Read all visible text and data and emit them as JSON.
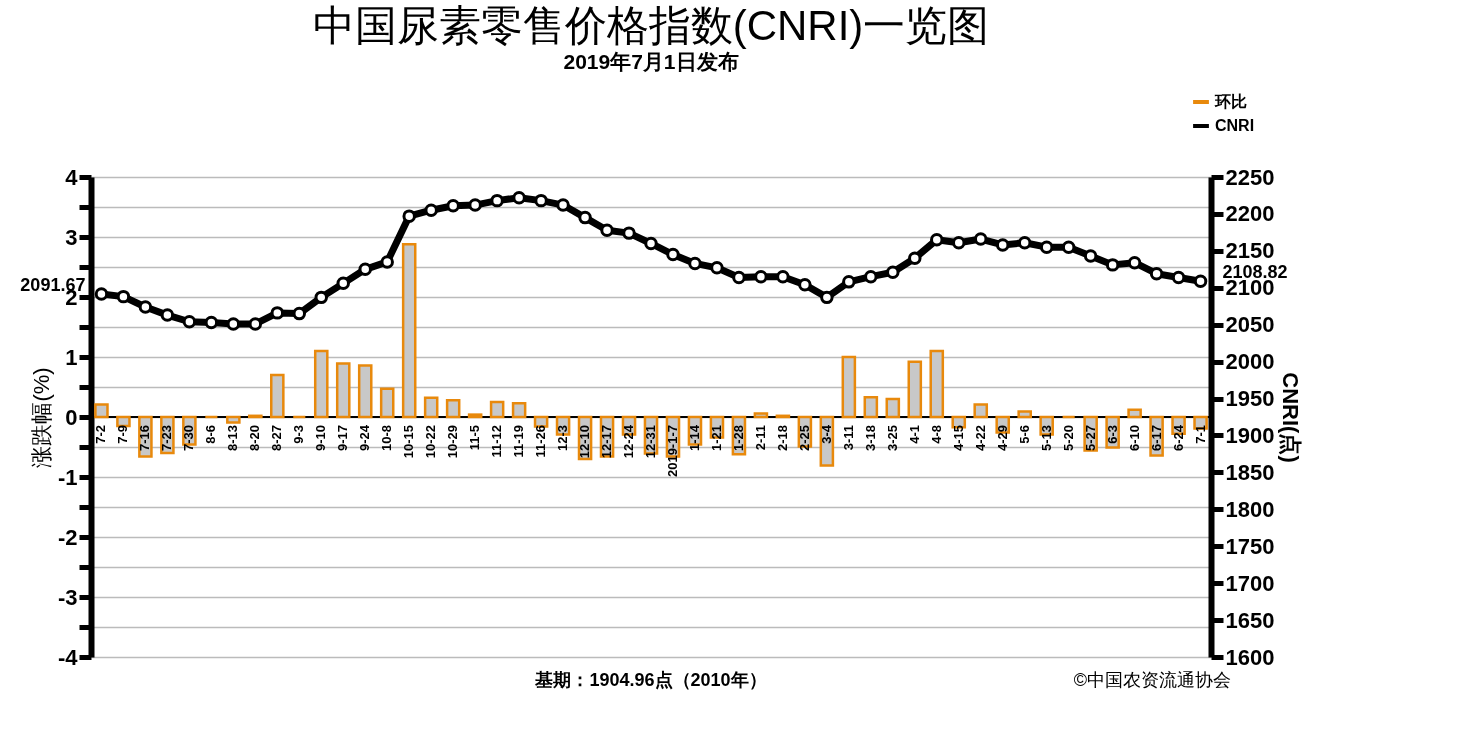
{
  "chart_data": {
    "type": "bar",
    "title": "中国尿素零售价格指数(CNRI)一览图",
    "subtitle": "2019年7月1日发布",
    "ylabel": "涨跌幅(%)",
    "y2label": "CNRI(点)",
    "categories": [
      "7-2",
      "7-9",
      "7-16",
      "7-23",
      "7-30",
      "8-6",
      "8-13",
      "8-20",
      "8-27",
      "9-3",
      "9-10",
      "9-17",
      "9-24",
      "10-8",
      "10-15",
      "10-22",
      "10-29",
      "11-5",
      "11-12",
      "11-19",
      "11-26",
      "12-3",
      "12-10",
      "12-17",
      "12-24",
      "12-31",
      "2019-1-7",
      "1-14",
      "1-21",
      "1-28",
      "2-11",
      "2-18",
      "2-25",
      "3-4",
      "3-11",
      "3-18",
      "3-25",
      "4-1",
      "4-8",
      "4-15",
      "4-22",
      "4-29",
      "5-6",
      "5-13",
      "5-20",
      "5-27",
      "6-3",
      "6-10",
      "6-17",
      "6-24",
      "7-1"
    ],
    "series": [
      {
        "name": "环比",
        "color": "#e8890c",
        "values": [
          0.21,
          -0.15,
          -0.66,
          -0.6,
          -0.46,
          0,
          -0.09,
          0.02,
          0.7,
          0,
          1.1,
          0.89,
          0.86,
          0.47,
          2.88,
          0.32,
          0.28,
          0.04,
          0.25,
          0.23,
          -0.16,
          -0.29,
          -0.7,
          -0.66,
          -0.29,
          -0.61,
          -0.66,
          -0.46,
          -0.34,
          -0.62,
          0.06,
          0.02,
          -0.49,
          -0.81,
          1.0,
          0.33,
          0.3,
          0.92,
          1.1,
          -0.17,
          0.21,
          -0.26,
          0.09,
          -0.29,
          0,
          -0.56,
          -0.51,
          0.12,
          -0.64,
          -0.28,
          -0.19
        ]
      },
      {
        "name": "CNRI",
        "type": "line",
        "axis": "y2",
        "color": "#000000",
        "values": [
          2091.67,
          2088,
          2074,
          2063,
          2054,
          2053,
          2051,
          2051,
          2066,
          2065,
          2087,
          2106,
          2125,
          2135,
          2197,
          2205,
          2211,
          2212,
          2218,
          2222,
          2218,
          2212,
          2195,
          2178,
          2174,
          2160,
          2145,
          2133,
          2127,
          2114,
          2115,
          2115,
          2104,
          2087,
          2108,
          2115,
          2121,
          2140,
          2165,
          2161,
          2166,
          2158,
          2161,
          2155,
          2155,
          2143,
          2131,
          2134,
          2119,
          2114,
          2108.82
        ]
      }
    ],
    "ylim": [
      -4,
      4
    ],
    "yticks": [
      -4,
      {
        "value": -3.5,
        "label": null
      },
      -3,
      {
        "value": -2.5,
        "label": null
      },
      -2,
      {
        "value": -1.5,
        "label": null
      },
      -1,
      {
        "value": -0.5,
        "label": null
      },
      0,
      {
        "value": 0.5,
        "label": null
      },
      1,
      {
        "value": 1.5,
        "label": null
      },
      2,
      {
        "value": 2.5,
        "label": null
      },
      3,
      {
        "value": 3.5,
        "label": null
      },
      4
    ],
    "y2lim": [
      1600,
      2250
    ],
    "y2ticks": [
      1600,
      1650,
      1700,
      1750,
      1800,
      1850,
      1900,
      1950,
      2000,
      2050,
      2100,
      2150,
      2200,
      2250
    ],
    "grid": "y",
    "legend": "top right",
    "marker": "circle",
    "line_style": "solid",
    "annotations": [
      "2091.67",
      "2108.82",
      "基期：1904.96点（2010年）",
      "©中国农资流通协会"
    ]
  }
}
